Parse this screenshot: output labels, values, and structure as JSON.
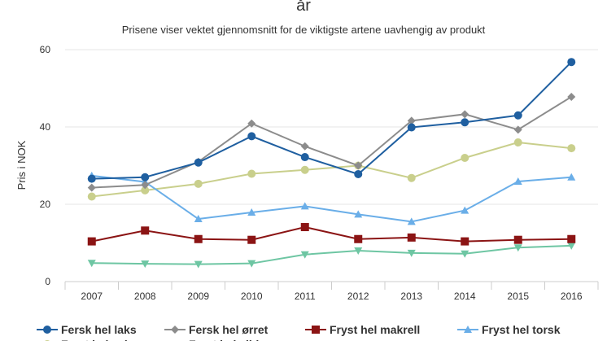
{
  "chart_data": {
    "type": "line",
    "title": "år",
    "subtitle": "Prisene viser vektet gjennomsnitt for de viktigste artene uavhengig av produkt",
    "xlabel": "",
    "ylabel": "Pris i NOK",
    "ylim": [
      0,
      60
    ],
    "yticks": [
      0,
      20,
      40,
      60
    ],
    "categories": [
      "2007",
      "2008",
      "2009",
      "2010",
      "2011",
      "2012",
      "2013",
      "2014",
      "2015",
      "2016"
    ],
    "grid": "horizontal",
    "legend_position": "bottom",
    "series": [
      {
        "name": "Fersk hel laks",
        "color": "#1f5fa0",
        "marker": "circle",
        "values": [
          26.6,
          27.0,
          30.8,
          37.6,
          32.2,
          27.8,
          39.9,
          41.2,
          43.0,
          56.8
        ]
      },
      {
        "name": "Fersk hel ørret",
        "color": "#8c8c8c",
        "marker": "diamond",
        "values": [
          24.3,
          25.0,
          31.0,
          40.9,
          35.0,
          30.0,
          41.6,
          43.3,
          39.3,
          47.8
        ]
      },
      {
        "name": "Fryst hel makrell",
        "color": "#8b1414",
        "marker": "square",
        "values": [
          10.4,
          13.2,
          11.0,
          10.8,
          14.1,
          11.0,
          11.4,
          10.4,
          10.8,
          11.0
        ]
      },
      {
        "name": "Fryst hel torsk",
        "color": "#6aaee8",
        "marker": "triangle",
        "values": [
          27.4,
          25.8,
          16.2,
          17.9,
          19.5,
          17.4,
          15.5,
          18.4,
          25.9,
          27.0
        ]
      },
      {
        "name": "Fryst hel sei",
        "color": "#c9cf8c",
        "marker": "circle",
        "values": [
          22.0,
          23.6,
          25.3,
          27.9,
          28.9,
          30.0,
          26.8,
          32.0,
          36.0,
          34.5
        ]
      },
      {
        "name": "Fryst hel sild",
        "color": "#6ec6a3",
        "marker": "triangle-down",
        "values": [
          4.8,
          4.6,
          4.5,
          4.7,
          7.0,
          8.0,
          7.4,
          7.2,
          8.8,
          9.3
        ]
      }
    ]
  }
}
